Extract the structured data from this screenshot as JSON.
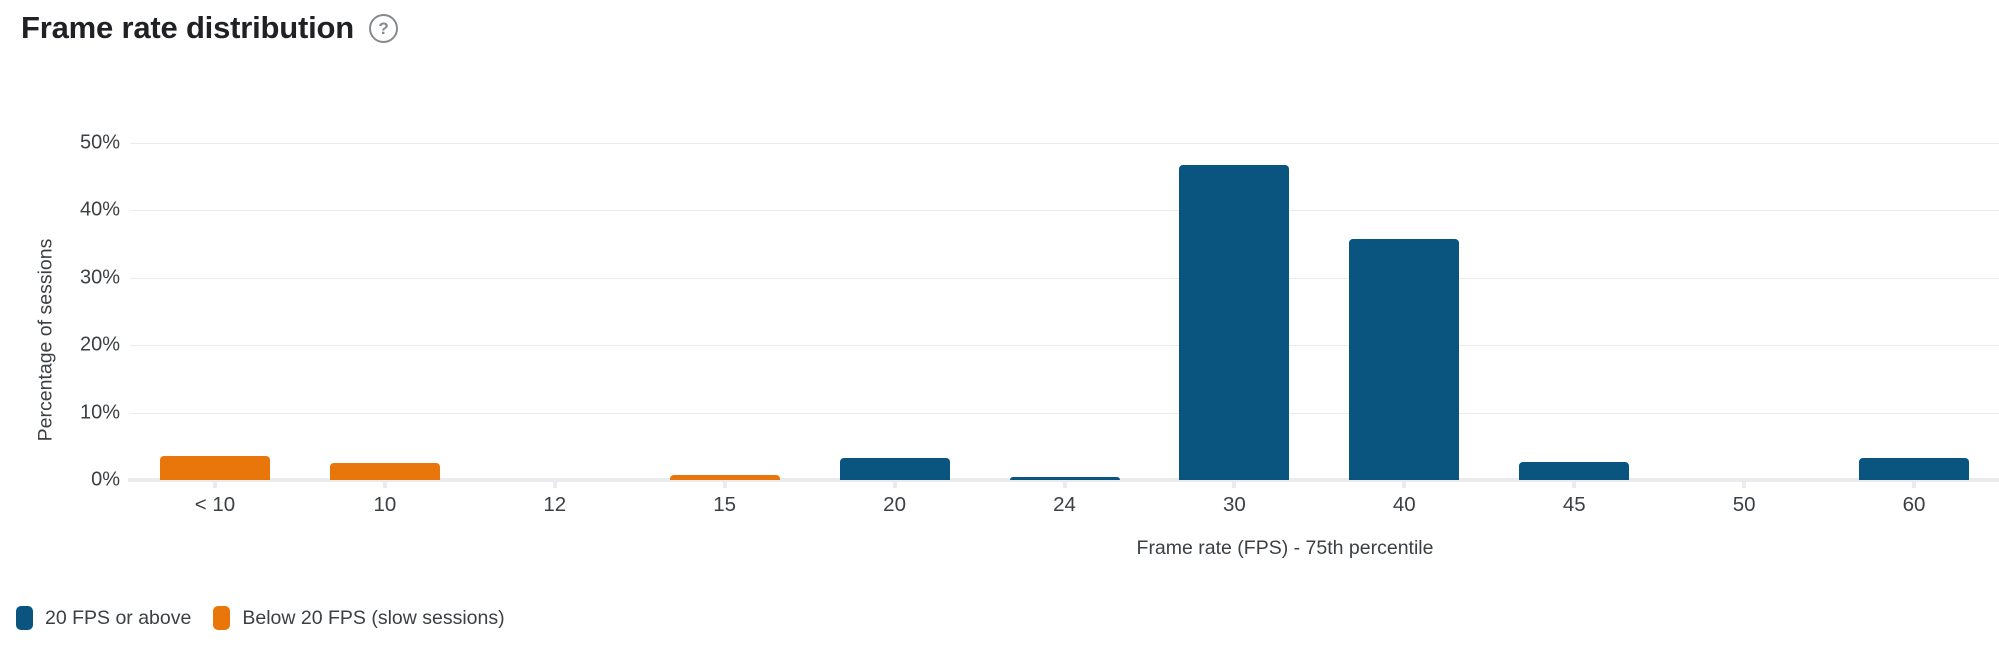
{
  "page": {
    "title": "Frame rate distribution"
  },
  "icons": {
    "help": "?"
  },
  "colors": {
    "blue": "#0a5480",
    "orange": "#e8760a",
    "grid": "#e9ebee",
    "axis_text": "#3c4043",
    "title_text": "#202124"
  },
  "chart_data": {
    "type": "bar",
    "title": "Frame rate distribution",
    "xlabel": "Frame rate (FPS) - 75th percentile",
    "ylabel": "Percentage of sessions",
    "categories": [
      "< 10",
      "10",
      "12",
      "15",
      "20",
      "24",
      "30",
      "40",
      "45",
      "50",
      "60"
    ],
    "yticks": [
      0,
      10,
      20,
      30,
      40,
      50
    ],
    "ytick_labels": [
      "0%",
      "10%",
      "20%",
      "30%",
      "40%",
      "50%"
    ],
    "ylim": [
      0,
      50
    ],
    "grid": true,
    "legend_position": "bottom-left",
    "series": [
      {
        "name": "20 FPS or above",
        "color": "#0a5480",
        "values": [
          null,
          null,
          null,
          null,
          3.3,
          0.5,
          46.8,
          35.8,
          2.7,
          0,
          3.2
        ]
      },
      {
        "name": "Below 20 FPS (slow sessions)",
        "color": "#e8760a",
        "values": [
          3.5,
          2.5,
          0,
          0.7,
          null,
          null,
          null,
          null,
          null,
          null,
          null
        ]
      }
    ]
  }
}
